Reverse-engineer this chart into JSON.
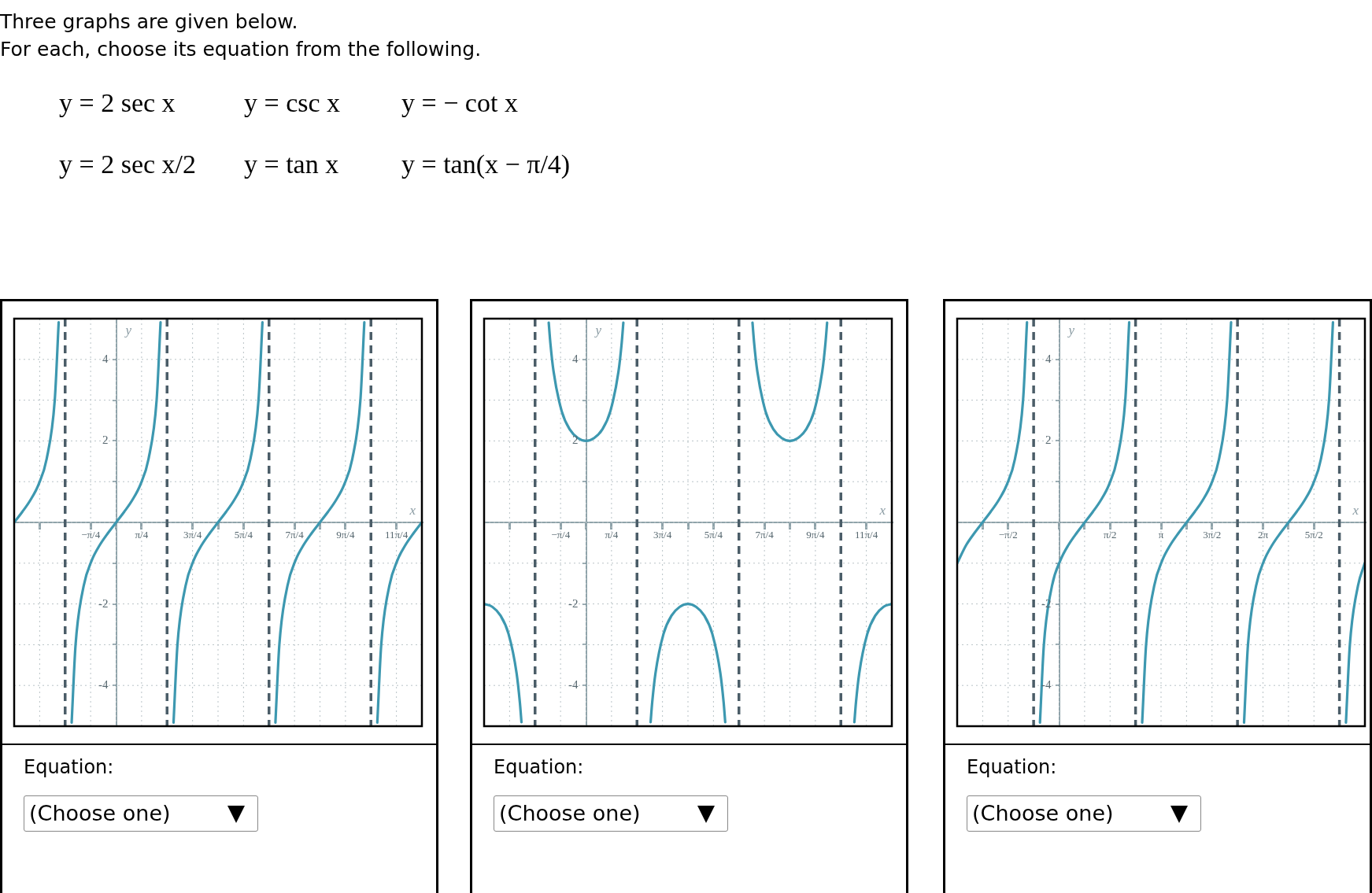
{
  "chart_data": [
    {
      "type": "line",
      "title": "Three graphs are given below.",
      "subtitle": "For each, choose its equation from the following.",
      "xlabel": "x",
      "ylabel": "y",
      "xlim": [
        -3.1416,
        9.4248
      ],
      "ylim": [
        -5,
        5
      ],
      "xticks": [
        {
          "value": -2.3562,
          "label": null
        },
        {
          "value": -0.7854,
          "label": "−π/4"
        },
        {
          "value": 0,
          "label": null
        },
        {
          "value": 0.7854,
          "label": "π/4"
        },
        {
          "value": 2.3562,
          "label": "3π/4"
        },
        {
          "value": 3.1416,
          "label": null
        },
        {
          "value": 3.927,
          "label": "5π/4"
        },
        {
          "value": 5.4978,
          "label": "7π/4"
        },
        {
          "value": 6.2832,
          "label": null
        },
        {
          "value": 7.0686,
          "label": "9π/4"
        },
        {
          "value": 8.6394,
          "label": "11π/4"
        }
      ],
      "yticks": [
        {
          "value": -4,
          "label": "-4"
        },
        {
          "value": -3,
          "label": null
        },
        {
          "value": -2,
          "label": "-2"
        },
        {
          "value": -1,
          "label": null
        },
        {
          "value": 0,
          "label": null
        },
        {
          "value": 1,
          "label": null
        },
        {
          "value": 2,
          "label": "2"
        },
        {
          "value": 3,
          "label": null
        },
        {
          "value": 4,
          "label": "4"
        }
      ],
      "grid": true,
      "marker": "none",
      "line_style": "solid",
      "series": [
        {
          "type": "line",
          "color": "#3d98b0",
          "x": [
            -3.14,
            -2.89,
            -2.64,
            -2.39,
            -2.14,
            -1.89,
            -1.77
          ],
          "values": [
            0,
            0.26,
            0.55,
            0.93,
            1.56,
            3.01,
            4.91
          ]
        },
        {
          "type": "line",
          "color": "#3d98b0",
          "x": [
            -1.37,
            -1.25,
            -1,
            -0.75,
            -0.5,
            -0.25,
            0,
            0.25,
            0.5,
            0.75,
            1,
            1.25,
            1.37
          ],
          "values": [
            -4.91,
            -3.01,
            -1.56,
            -0.93,
            -0.55,
            -0.26,
            0,
            0.26,
            0.55,
            0.93,
            1.56,
            3.01,
            4.91
          ]
        },
        {
          "type": "line",
          "color": "#3d98b0",
          "x": [
            1.77,
            1.89,
            2.14,
            2.39,
            2.64,
            2.89,
            3.14,
            3.39,
            3.64,
            3.89,
            4.14,
            4.39,
            4.51
          ],
          "values": [
            -4.91,
            -3.01,
            -1.56,
            -0.93,
            -0.55,
            -0.26,
            0,
            0.26,
            0.55,
            0.93,
            1.56,
            3.01,
            4.91
          ]
        },
        {
          "type": "line",
          "color": "#3d98b0",
          "x": [
            4.91,
            5.03,
            5.28,
            5.53,
            5.78,
            6.03,
            6.28,
            6.53,
            6.78,
            7.03,
            7.28,
            7.53,
            7.65
          ],
          "values": [
            -4.91,
            -3.01,
            -1.56,
            -0.93,
            -0.55,
            -0.26,
            0,
            0.26,
            0.55,
            0.93,
            1.56,
            3.01,
            4.91
          ]
        },
        {
          "type": "line",
          "color": "#3d98b0",
          "x": [
            8.05,
            8.17,
            8.42,
            8.67,
            8.92,
            9.17,
            9.42
          ],
          "values": [
            -4.91,
            -3.01,
            -1.56,
            -0.93,
            -0.55,
            -0.26,
            0
          ]
        }
      ],
      "ref_lines": [
        {
          "axis": "x",
          "value": -1.5708,
          "color": "#4b5d68",
          "line_style": "dashed"
        },
        {
          "axis": "x",
          "value": 1.5708,
          "color": "#4b5d68",
          "line_style": "dashed"
        },
        {
          "axis": "x",
          "value": 4.7124,
          "color": "#4b5d68",
          "line_style": "dashed"
        },
        {
          "axis": "x",
          "value": 7.854,
          "color": "#4b5d68",
          "line_style": "dashed"
        }
      ],
      "annotations": [
        "y = 2 sec x",
        "y = csc x",
        "y = − cot x",
        "y = 2 sec x/2",
        "y = tan x",
        "y = tan(x − π/4)",
        "Equation:",
        "(Choose one)"
      ]
    },
    {
      "type": "line",
      "xlabel": "x",
      "ylabel": "y",
      "xlim": [
        -3.1416,
        9.4248
      ],
      "ylim": [
        -5,
        5
      ],
      "xticks": [
        {
          "value": -2.3562,
          "label": null
        },
        {
          "value": -0.7854,
          "label": "−π/4"
        },
        {
          "value": 0,
          "label": null
        },
        {
          "value": 0.7854,
          "label": "π/4"
        },
        {
          "value": 2.3562,
          "label": "3π/4"
        },
        {
          "value": 3.1416,
          "label": null
        },
        {
          "value": 3.927,
          "label": "5π/4"
        },
        {
          "value": 5.4978,
          "label": "7π/4"
        },
        {
          "value": 6.2832,
          "label": null
        },
        {
          "value": 7.0686,
          "label": "9π/4"
        },
        {
          "value": 8.6394,
          "label": "11π/4"
        }
      ],
      "yticks": [
        {
          "value": -4,
          "label": "-4"
        },
        {
          "value": -3,
          "label": null
        },
        {
          "value": -2,
          "label": "-2"
        },
        {
          "value": -1,
          "label": null
        },
        {
          "value": 0,
          "label": null
        },
        {
          "value": 1,
          "label": null
        },
        {
          "value": 2,
          "label": "2"
        },
        {
          "value": 3,
          "label": null
        },
        {
          "value": 4,
          "label": "4"
        }
      ],
      "grid": true,
      "marker": "none",
      "line_style": "solid",
      "series": [
        {
          "type": "line",
          "color": "#3d98b0",
          "x": [
            -3.14,
            -2.89,
            -2.64,
            -2.39,
            -2.14,
            -2.04,
            -1.99
          ],
          "values": [
            -2,
            -2.07,
            -2.28,
            -2.73,
            -3.7,
            -4.41,
            -4.9
          ]
        },
        {
          "type": "line",
          "color": "#3d98b0",
          "x": [
            -1.15,
            -1.1,
            -1,
            -0.75,
            -0.5,
            -0.25,
            0,
            0.25,
            0.5,
            0.75,
            1,
            1.1,
            1.15
          ],
          "values": [
            4.9,
            4.41,
            3.7,
            2.73,
            2.28,
            2.07,
            2,
            2.07,
            2.28,
            2.73,
            3.7,
            4.41,
            4.9
          ]
        },
        {
          "type": "line",
          "color": "#3d98b0",
          "x": [
            1.99,
            2.04,
            2.14,
            2.39,
            2.64,
            2.89,
            3.14,
            3.39,
            3.64,
            3.89,
            4.14,
            4.24,
            4.29
          ],
          "values": [
            -4.9,
            -4.41,
            -3.7,
            -2.73,
            -2.28,
            -2.07,
            -2,
            -2.07,
            -2.28,
            -2.73,
            -3.7,
            -4.41,
            -4.9
          ]
        },
        {
          "type": "line",
          "color": "#3d98b0",
          "x": [
            5.13,
            5.18,
            5.28,
            5.53,
            5.78,
            6.03,
            6.28,
            6.53,
            6.78,
            7.03,
            7.28,
            7.38,
            7.43
          ],
          "values": [
            4.9,
            4.41,
            3.7,
            2.73,
            2.28,
            2.07,
            2,
            2.07,
            2.28,
            2.73,
            3.7,
            4.41,
            4.9
          ]
        },
        {
          "type": "line",
          "color": "#3d98b0",
          "x": [
            8.27,
            8.32,
            8.42,
            8.67,
            8.92,
            9.17,
            9.42
          ],
          "values": [
            -4.9,
            -4.41,
            -3.7,
            -2.73,
            -2.28,
            -2.07,
            -2
          ]
        }
      ],
      "ref_lines": [
        {
          "axis": "x",
          "value": -1.5708,
          "color": "#4b5d68",
          "line_style": "dashed"
        },
        {
          "axis": "x",
          "value": 1.5708,
          "color": "#4b5d68",
          "line_style": "dashed"
        },
        {
          "axis": "x",
          "value": 4.7124,
          "color": "#4b5d68",
          "line_style": "dashed"
        },
        {
          "axis": "x",
          "value": 7.854,
          "color": "#4b5d68",
          "line_style": "dashed"
        }
      ],
      "annotations": [
        "Equation:",
        "(Choose one)"
      ]
    },
    {
      "type": "line",
      "xlabel": "x",
      "ylabel": "y",
      "xlim": [
        -3.1416,
        9.4248
      ],
      "ylim": [
        -5,
        5
      ],
      "xticks": [
        {
          "value": -2.3562,
          "label": null
        },
        {
          "value": -1.5708,
          "label": "−π/2"
        },
        {
          "value": 0,
          "label": null
        },
        {
          "value": 0.7854,
          "label": null
        },
        {
          "value": 1.5708,
          "label": "π/2"
        },
        {
          "value": 3.1416,
          "label": "π"
        },
        {
          "value": 3.927,
          "label": null
        },
        {
          "value": 4.7124,
          "label": "3π/2"
        },
        {
          "value": 6.2832,
          "label": "2π"
        },
        {
          "value": 7.0686,
          "label": null
        },
        {
          "value": 7.854,
          "label": "5π/2"
        }
      ],
      "yticks": [
        {
          "value": -4,
          "label": "-4"
        },
        {
          "value": -3,
          "label": null
        },
        {
          "value": -2,
          "label": "-2"
        },
        {
          "value": -1,
          "label": null
        },
        {
          "value": 0,
          "label": null
        },
        {
          "value": 1,
          "label": null
        },
        {
          "value": 2,
          "label": "2"
        },
        {
          "value": 3,
          "label": null
        },
        {
          "value": 4,
          "label": "4"
        }
      ],
      "grid": true,
      "marker": "none",
      "line_style": "solid",
      "series": [
        {
          "type": "line",
          "color": "#3d98b0",
          "x": [
            -3.14,
            -2.86,
            -2.61,
            -2.36,
            -2.11,
            -1.86,
            -1.61,
            -1.36,
            -1.11,
            -0.99
          ],
          "values": [
            -1,
            -0.55,
            -0.26,
            0,
            0.26,
            0.55,
            0.93,
            1.56,
            3.01,
            4.91
          ]
        },
        {
          "type": "line",
          "color": "#3d98b0",
          "x": [
            -0.59,
            -0.47,
            -0.22,
            0.04,
            0.29,
            0.54,
            0.79,
            1.04,
            1.29,
            1.54,
            1.79,
            2.04,
            2.16
          ],
          "values": [
            -4.91,
            -3.01,
            -1.56,
            -0.93,
            -0.55,
            -0.26,
            0,
            0.26,
            0.55,
            0.93,
            1.56,
            3.01,
            4.91
          ]
        },
        {
          "type": "line",
          "color": "#3d98b0",
          "x": [
            2.56,
            2.68,
            2.93,
            3.18,
            3.43,
            3.68,
            3.93,
            4.18,
            4.43,
            4.68,
            4.93,
            5.18,
            5.3
          ],
          "values": [
            -4.91,
            -3.01,
            -1.56,
            -0.93,
            -0.55,
            -0.26,
            0,
            0.26,
            0.55,
            0.93,
            1.56,
            3.01,
            4.91
          ]
        },
        {
          "type": "line",
          "color": "#3d98b0",
          "x": [
            5.7,
            5.82,
            6.07,
            6.32,
            6.57,
            6.82,
            7.07,
            7.32,
            7.57,
            7.82,
            8.07,
            8.32,
            8.44
          ],
          "values": [
            -4.91,
            -3.01,
            -1.56,
            -0.93,
            -0.55,
            -0.26,
            0,
            0.26,
            0.55,
            0.93,
            1.56,
            3.01,
            4.91
          ]
        },
        {
          "type": "line",
          "color": "#3d98b0",
          "x": [
            8.84,
            8.96,
            9.21,
            9.42
          ],
          "values": [
            -4.91,
            -3.01,
            -1.56,
            -1
          ]
        }
      ],
      "ref_lines": [
        {
          "axis": "x",
          "value": -0.7854,
          "color": "#4b5d68",
          "line_style": "dashed"
        },
        {
          "axis": "x",
          "value": 2.3562,
          "color": "#4b5d68",
          "line_style": "dashed"
        },
        {
          "axis": "x",
          "value": 5.4978,
          "color": "#4b5d68",
          "line_style": "dashed"
        },
        {
          "axis": "x",
          "value": 8.6394,
          "color": "#4b5d68",
          "line_style": "dashed"
        }
      ],
      "annotations": [
        "Equation:",
        "(Choose one)"
      ]
    }
  ]
}
